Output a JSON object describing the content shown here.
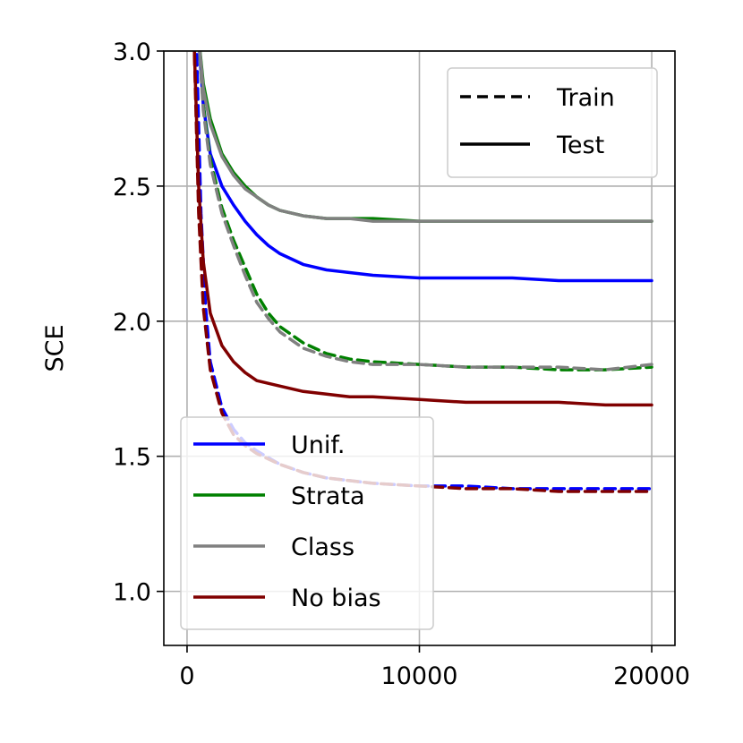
{
  "chart_data": {
    "type": "line",
    "title": "",
    "xlabel": "",
    "ylabel": "SCE",
    "xlim": [
      -1000,
      21000
    ],
    "ylim": [
      0.8,
      3.0
    ],
    "xticks": [
      0,
      10000,
      20000
    ],
    "xtick_labels": [
      "0",
      "10000",
      "20000"
    ],
    "yticks": [
      1.0,
      1.5,
      2.0,
      2.5,
      3.0
    ],
    "ytick_labels": [
      "1.0",
      "1.5",
      "2.0",
      "2.5",
      "3.0"
    ],
    "grid": true,
    "style_legend": {
      "placement": "top-right",
      "entries": [
        {
          "label": "Train",
          "dash": "dashed"
        },
        {
          "label": "Test",
          "dash": "solid"
        }
      ]
    },
    "series_legend": {
      "placement": "bottom-left",
      "entries": [
        {
          "label": "Unif.",
          "color": "#0000ff"
        },
        {
          "label": "Strata",
          "color": "#008000"
        },
        {
          "label": "Class",
          "color": "#808080"
        },
        {
          "label": "No bias",
          "color": "#800000"
        }
      ]
    },
    "series": [
      {
        "legend": "Unif.",
        "split": "Test",
        "color": "#0000ff",
        "x": [
          500,
          700,
          1000,
          1500,
          2000,
          2500,
          3000,
          3500,
          4000,
          5000,
          6000,
          7000,
          8000,
          10000,
          12000,
          14000,
          16000,
          18000,
          20000
        ],
        "y": [
          3.05,
          2.8,
          2.62,
          2.5,
          2.43,
          2.37,
          2.32,
          2.28,
          2.25,
          2.21,
          2.19,
          2.18,
          2.17,
          2.16,
          2.16,
          2.16,
          2.15,
          2.15,
          2.15
        ]
      },
      {
        "legend": "Unif.",
        "split": "Train",
        "color": "#0000ff",
        "x": [
          400,
          600,
          800,
          1000,
          1500,
          2000,
          2500,
          3000,
          4000,
          5000,
          6000,
          7000,
          8000,
          10000,
          12000,
          14000,
          16000,
          18000,
          20000
        ],
        "y": [
          3.05,
          2.4,
          2.05,
          1.85,
          1.68,
          1.6,
          1.55,
          1.52,
          1.47,
          1.44,
          1.42,
          1.41,
          1.4,
          1.39,
          1.39,
          1.38,
          1.38,
          1.38,
          1.38
        ]
      },
      {
        "legend": "Strata",
        "split": "Test",
        "color": "#008000",
        "x": [
          500,
          700,
          1000,
          1500,
          2000,
          2500,
          3000,
          3500,
          4000,
          5000,
          6000,
          7000,
          8000,
          10000,
          12000,
          14000,
          16000,
          18000,
          20000
        ],
        "y": [
          3.05,
          2.88,
          2.75,
          2.62,
          2.55,
          2.5,
          2.46,
          2.43,
          2.41,
          2.39,
          2.38,
          2.38,
          2.38,
          2.37,
          2.37,
          2.37,
          2.37,
          2.37,
          2.37
        ]
      },
      {
        "legend": "Strata",
        "split": "Train",
        "color": "#008000",
        "x": [
          500,
          700,
          1000,
          1500,
          2000,
          2500,
          3000,
          3500,
          4000,
          5000,
          6000,
          7000,
          8000,
          10000,
          12000,
          14000,
          16000,
          18000,
          20000
        ],
        "y": [
          3.05,
          2.8,
          2.6,
          2.42,
          2.3,
          2.2,
          2.1,
          2.03,
          1.98,
          1.92,
          1.88,
          1.86,
          1.85,
          1.84,
          1.83,
          1.83,
          1.82,
          1.82,
          1.83
        ]
      },
      {
        "legend": "Class",
        "split": "Test",
        "color": "#808080",
        "x": [
          500,
          700,
          1000,
          1500,
          2000,
          2500,
          3000,
          3500,
          4000,
          5000,
          6000,
          7000,
          8000,
          10000,
          12000,
          14000,
          16000,
          18000,
          20000
        ],
        "y": [
          3.05,
          2.86,
          2.73,
          2.61,
          2.54,
          2.49,
          2.46,
          2.43,
          2.41,
          2.39,
          2.38,
          2.38,
          2.37,
          2.37,
          2.37,
          2.37,
          2.37,
          2.37,
          2.37
        ]
      },
      {
        "legend": "Class",
        "split": "Train",
        "color": "#808080",
        "x": [
          500,
          700,
          1000,
          1500,
          2000,
          2500,
          3000,
          3500,
          4000,
          5000,
          6000,
          7000,
          8000,
          10000,
          12000,
          14000,
          16000,
          18000,
          20000
        ],
        "y": [
          3.05,
          2.78,
          2.58,
          2.4,
          2.28,
          2.17,
          2.07,
          2.01,
          1.96,
          1.9,
          1.87,
          1.85,
          1.84,
          1.84,
          1.83,
          1.83,
          1.83,
          1.82,
          1.84
        ]
      },
      {
        "legend": "No bias",
        "split": "Test",
        "color": "#800000",
        "x": [
          300,
          500,
          700,
          1000,
          1500,
          2000,
          2500,
          3000,
          4000,
          5000,
          6000,
          7000,
          8000,
          10000,
          12000,
          14000,
          16000,
          18000,
          20000
        ],
        "y": [
          3.05,
          2.5,
          2.22,
          2.03,
          1.91,
          1.85,
          1.81,
          1.78,
          1.76,
          1.74,
          1.73,
          1.72,
          1.72,
          1.71,
          1.7,
          1.7,
          1.7,
          1.69,
          1.69
        ]
      },
      {
        "legend": "No bias",
        "split": "Train",
        "color": "#800000",
        "x": [
          300,
          500,
          700,
          1000,
          1500,
          2000,
          2500,
          3000,
          4000,
          5000,
          6000,
          7000,
          8000,
          10000,
          12000,
          14000,
          16000,
          18000,
          20000
        ],
        "y": [
          3.05,
          2.4,
          2.05,
          1.82,
          1.66,
          1.58,
          1.54,
          1.51,
          1.47,
          1.44,
          1.42,
          1.41,
          1.4,
          1.39,
          1.38,
          1.38,
          1.37,
          1.37,
          1.37
        ]
      }
    ]
  }
}
